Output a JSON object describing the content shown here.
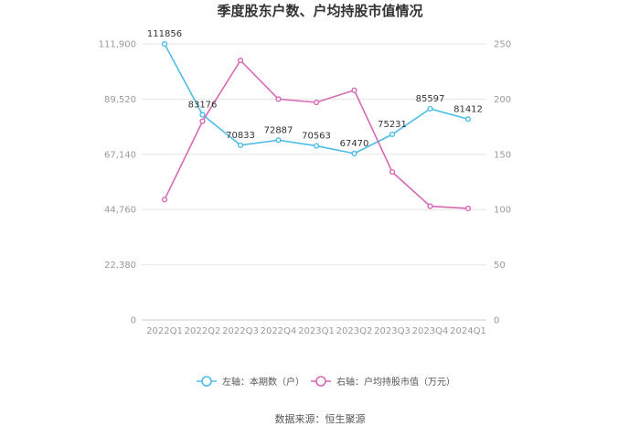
{
  "chart_data": {
    "type": "line",
    "title": "季度股东户数、户均持股市值情况",
    "categories": [
      "2022Q1",
      "2022Q2",
      "2022Q3",
      "2022Q4",
      "2023Q1",
      "2023Q2",
      "2023Q3",
      "2023Q4",
      "2024Q1"
    ],
    "series": [
      {
        "name": "左轴：本期数（户）",
        "axis": "left",
        "color": "#4dbde8",
        "values": [
          111856,
          83176,
          70833,
          72887,
          70563,
          67470,
          75231,
          85597,
          81412
        ],
        "labels": [
          "111856",
          "83176",
          "70833",
          "72887",
          "70563",
          "67470",
          "75231",
          "85597",
          "81412"
        ]
      },
      {
        "name": "右轴：户均持股市值（万元）",
        "axis": "right",
        "color": "#d867b2",
        "values": [
          109,
          180,
          235,
          200,
          197,
          208,
          134,
          103,
          101
        ]
      }
    ],
    "left_axis": {
      "min": 0,
      "max": 111900,
      "ticks": [
        0,
        22380,
        44760,
        67140,
        89520,
        111900
      ],
      "tick_labels": [
        "0",
        "22,380",
        "44,760",
        "67,140",
        "89,520",
        "111,900"
      ]
    },
    "right_axis": {
      "min": 0,
      "max": 250,
      "ticks": [
        0,
        50,
        100,
        150,
        200,
        250
      ],
      "tick_labels": [
        "0",
        "50",
        "100",
        "150",
        "200",
        "250"
      ]
    },
    "grid": true,
    "legend_position": "bottom"
  },
  "source": "数据来源：恒生聚源"
}
